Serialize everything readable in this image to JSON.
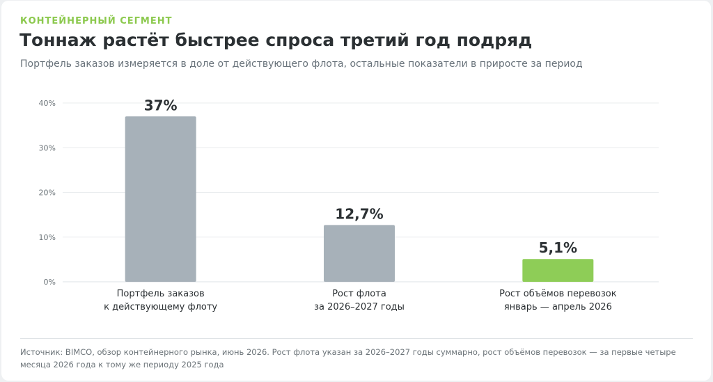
{
  "kicker": "КОНТЕЙНЕРНЫЙ СЕГМЕНТ",
  "title": "Тоннаж растёт быстрее спроса третий год подряд",
  "subtitle": "Портфель заказов измеряется в доле от действующего флота, остальные показатели в приросте за период",
  "footer": "Источник: BIMCO, обзор контейнерного рынка, июнь 2026. Рост флота указан за 2026–2027 годы суммарно, рост объёмов перевозок — за первые четыре месяца 2026 года к тому же периоду 2025 года",
  "colors": {
    "bar_neutral": "#a7b1b9",
    "bar_accent": "#8ecd57",
    "grid": "#e9ecee",
    "axis_text": "#6b7378",
    "value_text": "#2b3033"
  },
  "chart_data": {
    "type": "bar",
    "categories": [
      [
        "Портфель заказов",
        "к действующему флоту"
      ],
      [
        "Рост флота",
        "за 2026–2027 годы"
      ],
      [
        "Рост объёмов перевозок",
        "январь — апрель 2026"
      ]
    ],
    "values": [
      37,
      12.7,
      5.1
    ],
    "value_labels": [
      "37%",
      "12,7%",
      "5,1%"
    ],
    "highlight_index": 2,
    "ylim": [
      0,
      40
    ],
    "yticks": [
      0,
      10,
      20,
      30,
      40
    ],
    "ytick_labels": [
      "0%",
      "10%",
      "20%",
      "30%",
      "40%"
    ],
    "grid": true,
    "legend": "none"
  }
}
